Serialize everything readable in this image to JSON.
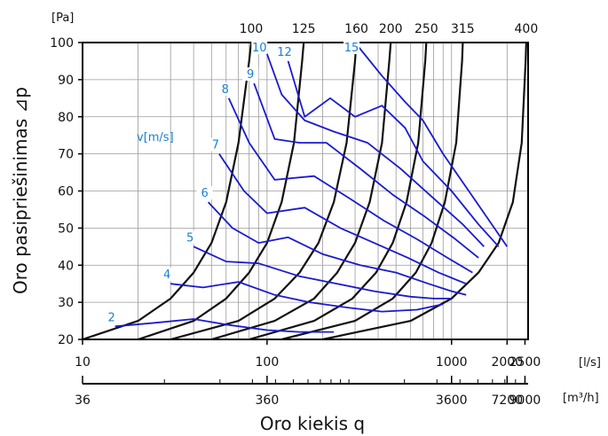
{
  "chart_data": {
    "type": "line",
    "title": "",
    "xlabel": "Oro kiekis q",
    "ylabel": "Oro pasipriešinimas ⊿p",
    "y_unit": "[Pa]",
    "x_unit": "[l/s]",
    "x2_unit": "[m³/h]",
    "x_scale": "log",
    "xlim": [
      10,
      2600
    ],
    "ylim": [
      20,
      100
    ],
    "grid": true,
    "y_ticks": [
      "20",
      "30",
      "40",
      "50",
      "60",
      "70",
      "80",
      "90",
      "100"
    ],
    "x_ticks": [
      {
        "value": 10,
        "label": "10"
      },
      {
        "value": 100,
        "label": "100"
      },
      {
        "value": 1000,
        "label": "1000"
      },
      {
        "value": 2000,
        "label": "2000"
      },
      {
        "value": 2500,
        "label": "2500"
      }
    ],
    "x2_ticks": [
      {
        "value": 36,
        "label": "36"
      },
      {
        "value": 360,
        "label": "360"
      },
      {
        "value": 3600,
        "label": "3600"
      },
      {
        "value": 7200,
        "label": "7200"
      },
      {
        "value": 9000,
        "label": "9000"
      }
    ],
    "diameter_labels": [
      "100",
      "125",
      "160",
      "200",
      "250",
      "315",
      "400"
    ],
    "velocity_unit_label": "v[m/s]",
    "velocity_labels": [
      "2",
      "4",
      "5",
      "6",
      "7",
      "8",
      "9",
      "10",
      "12",
      "15"
    ],
    "series_diameter": [
      {
        "name": "100",
        "points": [
          [
            10,
            20
          ],
          [
            20,
            25
          ],
          [
            30,
            31
          ],
          [
            40,
            38
          ],
          [
            50,
            46
          ],
          [
            60,
            57
          ],
          [
            70,
            73
          ],
          [
            80,
            95
          ],
          [
            82,
            100
          ]
        ]
      },
      {
        "name": "125",
        "points": [
          [
            20,
            20
          ],
          [
            40,
            25
          ],
          [
            60,
            31
          ],
          [
            80,
            38
          ],
          [
            100,
            46
          ],
          [
            120,
            57
          ],
          [
            140,
            73
          ],
          [
            155,
            95
          ],
          [
            158,
            100
          ]
        ]
      },
      {
        "name": "160",
        "points": [
          [
            30,
            20
          ],
          [
            70,
            25
          ],
          [
            110,
            31
          ],
          [
            150,
            38
          ],
          [
            190,
            46
          ],
          [
            230,
            57
          ],
          [
            270,
            73
          ],
          [
            300,
            95
          ],
          [
            305,
            100
          ]
        ]
      },
      {
        "name": "200",
        "points": [
          [
            50,
            20
          ],
          [
            110,
            25
          ],
          [
            180,
            31
          ],
          [
            240,
            38
          ],
          [
            300,
            46
          ],
          [
            360,
            57
          ],
          [
            420,
            73
          ],
          [
            460,
            95
          ],
          [
            468,
            100
          ]
        ]
      },
      {
        "name": "250",
        "points": [
          [
            80,
            20
          ],
          [
            180,
            25
          ],
          [
            290,
            31
          ],
          [
            390,
            38
          ],
          [
            480,
            46
          ],
          [
            570,
            57
          ],
          [
            660,
            73
          ],
          [
            720,
            95
          ],
          [
            730,
            100
          ]
        ]
      },
      {
        "name": "315",
        "points": [
          [
            120,
            20
          ],
          [
            300,
            25
          ],
          [
            480,
            31
          ],
          [
            640,
            38
          ],
          [
            780,
            46
          ],
          [
            920,
            57
          ],
          [
            1060,
            73
          ],
          [
            1140,
            95
          ],
          [
            1150,
            100
          ]
        ]
      },
      {
        "name": "400",
        "points": [
          [
            200,
            20
          ],
          [
            600,
            25
          ],
          [
            1000,
            31
          ],
          [
            1400,
            38
          ],
          [
            1800,
            46
          ],
          [
            2150,
            57
          ],
          [
            2400,
            73
          ],
          [
            2520,
            95
          ],
          [
            2540,
            100
          ]
        ]
      }
    ],
    "series_velocity": [
      {
        "name": "2",
        "points": [
          [
            15,
            23.5
          ],
          [
            25,
            24.5
          ],
          [
            40,
            25.5
          ],
          [
            60,
            24
          ],
          [
            100,
            22.5
          ],
          [
            150,
            22
          ],
          [
            230,
            22
          ]
        ]
      },
      {
        "name": "4",
        "points": [
          [
            30,
            35
          ],
          [
            45,
            34
          ],
          [
            70,
            35.5
          ],
          [
            110,
            32
          ],
          [
            170,
            30
          ],
          [
            280,
            28.5
          ],
          [
            420,
            27.5
          ],
          [
            650,
            28
          ],
          [
            900,
            29.5
          ]
        ]
      },
      {
        "name": "5",
        "points": [
          [
            40,
            45
          ],
          [
            60,
            41
          ],
          [
            90,
            40.5
          ],
          [
            150,
            37
          ],
          [
            240,
            35
          ],
          [
            380,
            33
          ],
          [
            600,
            31.5
          ],
          [
            800,
            31
          ],
          [
            1000,
            31
          ]
        ]
      },
      {
        "name": "6",
        "points": [
          [
            48,
            57
          ],
          [
            65,
            50
          ],
          [
            90,
            46
          ],
          [
            130,
            47.5
          ],
          [
            200,
            43
          ],
          [
            320,
            40
          ],
          [
            500,
            38
          ],
          [
            750,
            35
          ],
          [
            1000,
            33
          ],
          [
            1200,
            32
          ]
        ]
      },
      {
        "name": "7",
        "points": [
          [
            55,
            70
          ],
          [
            75,
            60
          ],
          [
            100,
            54
          ],
          [
            160,
            55.5
          ],
          [
            250,
            50
          ],
          [
            380,
            46
          ],
          [
            580,
            42
          ],
          [
            850,
            38
          ],
          [
            1200,
            35
          ]
        ]
      },
      {
        "name": "8",
        "points": [
          [
            62,
            85
          ],
          [
            80,
            73
          ],
          [
            110,
            63
          ],
          [
            180,
            64
          ],
          [
            280,
            58
          ],
          [
            430,
            52
          ],
          [
            650,
            47
          ],
          [
            950,
            42
          ],
          [
            1300,
            38
          ]
        ]
      },
      {
        "name": "9",
        "points": [
          [
            85,
            89
          ],
          [
            110,
            74
          ],
          [
            150,
            73
          ],
          [
            210,
            73
          ],
          [
            320,
            66
          ],
          [
            480,
            59
          ],
          [
            720,
            53
          ],
          [
            1050,
            47
          ],
          [
            1400,
            42
          ]
        ]
      },
      {
        "name": "10",
        "points": [
          [
            95,
            100
          ],
          [
            120,
            86
          ],
          [
            160,
            79
          ],
          [
            230,
            76
          ],
          [
            350,
            73
          ],
          [
            530,
            66
          ],
          [
            800,
            58
          ],
          [
            1150,
            51
          ],
          [
            1500,
            45
          ]
        ]
      },
      {
        "name": "12",
        "points": [
          [
            130,
            95
          ],
          [
            160,
            80
          ],
          [
            220,
            85
          ],
          [
            300,
            80
          ],
          [
            420,
            83
          ],
          [
            560,
            77
          ],
          [
            700,
            68
          ],
          [
            1000,
            60
          ],
          [
            1400,
            51
          ],
          [
            1800,
            45
          ]
        ]
      },
      {
        "name": "15",
        "points": [
          [
            300,
            100
          ],
          [
            420,
            91
          ],
          [
            560,
            84
          ],
          [
            700,
            79
          ],
          [
            900,
            70
          ],
          [
            1200,
            61
          ],
          [
            1600,
            52
          ],
          [
            2000,
            45
          ]
        ]
      }
    ],
    "colors": {
      "diameter": "#111111",
      "velocity": "#1a1ad0",
      "velocity_labels": "#1a7fd4",
      "grid": "#9a9a9a",
      "frame": "#000000"
    }
  }
}
